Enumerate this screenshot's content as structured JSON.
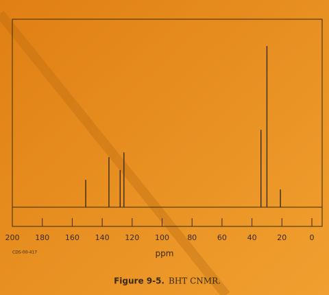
{
  "chart_data": {
    "type": "stem",
    "x_label": "ppm",
    "code": "CDS-00-417",
    "caption_label": "Figure 9-5.",
    "caption_text": "BHT CNMR.",
    "x": [
      151,
      135.5,
      128,
      125.5,
      34,
      30,
      21
    ],
    "values": [
      17,
      31,
      23,
      34,
      48,
      100,
      11
    ],
    "color": "#3a2a10",
    "xlim": [
      200,
      0
    ],
    "xticks": [
      200,
      180,
      160,
      140,
      120,
      100,
      80,
      60,
      40,
      20,
      0
    ],
    "ylim": [
      0,
      100
    ]
  }
}
